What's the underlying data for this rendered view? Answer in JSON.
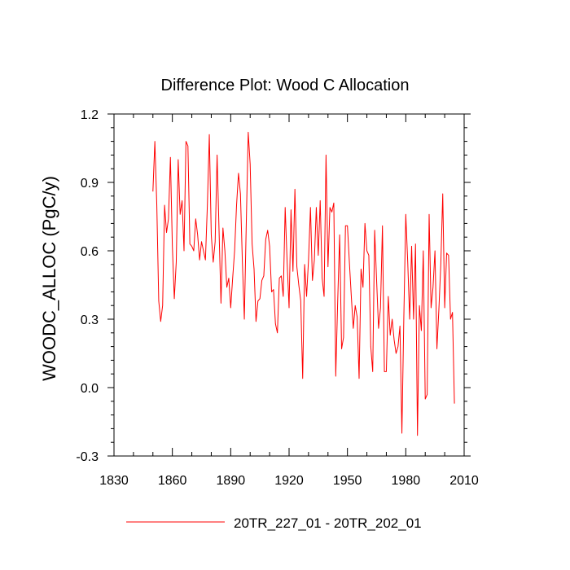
{
  "chart_data": {
    "type": "line",
    "title": "Difference Plot: Wood C Allocation",
    "xlabel": "",
    "ylabel": "WOODC_ALLOC  (PgC/y)",
    "xlim": [
      1830,
      2010
    ],
    "ylim": [
      -0.3,
      1.2
    ],
    "xticks": [
      1830,
      1860,
      1890,
      1920,
      1950,
      1980,
      2010
    ],
    "xtick_labels": [
      "1830",
      "1860",
      "1890",
      "1920",
      "1950",
      "1980",
      "2010"
    ],
    "yticks": [
      -0.3,
      0.0,
      0.3,
      0.6,
      0.9,
      1.2
    ],
    "ytick_labels": [
      "-0.3",
      "0.0",
      "0.3",
      "0.6",
      "0.9",
      "1.2"
    ],
    "grid": false,
    "legend_position": "bottom",
    "series": [
      {
        "name": "20TR_227_01 - 20TR_202_01",
        "color": "#ff0000",
        "x_start": 1850,
        "x_step": 1,
        "values": [
          0.86,
          1.08,
          0.8,
          0.38,
          0.29,
          0.36,
          0.8,
          0.68,
          0.74,
          1.01,
          0.62,
          0.39,
          0.55,
          1.0,
          0.76,
          0.82,
          0.6,
          1.08,
          1.06,
          0.63,
          0.62,
          0.6,
          0.74,
          0.67,
          0.56,
          0.64,
          0.6,
          0.56,
          0.8,
          1.11,
          0.67,
          0.55,
          0.64,
          1.02,
          0.69,
          0.37,
          0.7,
          0.6,
          0.44,
          0.48,
          0.35,
          0.48,
          0.6,
          0.8,
          0.94,
          0.85,
          0.55,
          0.3,
          0.72,
          1.12,
          0.98,
          0.63,
          0.52,
          0.29,
          0.38,
          0.39,
          0.47,
          0.49,
          0.65,
          0.69,
          0.62,
          0.42,
          0.43,
          0.28,
          0.24,
          0.48,
          0.49,
          0.4,
          0.79,
          0.55,
          0.35,
          0.78,
          0.51,
          0.87,
          0.53,
          0.45,
          0.38,
          0.04,
          0.54,
          0.4,
          0.56,
          0.79,
          0.47,
          0.56,
          0.79,
          0.58,
          0.82,
          0.48,
          0.4,
          1.02,
          0.53,
          0.79,
          0.77,
          0.81,
          0.05,
          0.38,
          0.67,
          0.17,
          0.22,
          0.71,
          0.71,
          0.55,
          0.4,
          0.26,
          0.36,
          0.31,
          0.04,
          0.52,
          0.44,
          0.72,
          0.6,
          0.58,
          0.18,
          0.07,
          0.69,
          0.47,
          0.26,
          0.35,
          0.71,
          0.07,
          0.07,
          0.4,
          0.23,
          0.3,
          0.21,
          0.15,
          0.18,
          0.27,
          -0.2,
          0.31,
          0.76,
          0.55,
          0.3,
          0.62,
          0.3,
          0.63,
          -0.21,
          0.36,
          0.25,
          0.6,
          -0.05,
          -0.03,
          0.76,
          0.35,
          0.44,
          0.6,
          0.17,
          0.34,
          0.54,
          0.85,
          0.35,
          0.59,
          0.58,
          0.3,
          0.33,
          -0.07
        ]
      }
    ]
  }
}
